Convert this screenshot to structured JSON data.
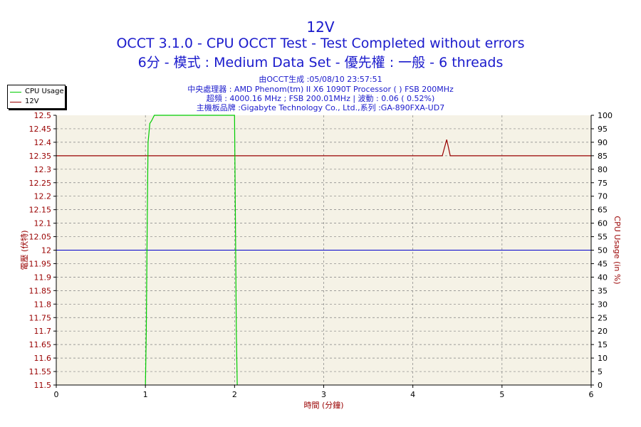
{
  "header": {
    "title": "12V",
    "subtitle1": "OCCT 3.1.0 - CPU OCCT Test - Test Completed without errors",
    "subtitle2": "6分 - 模式 : Medium Data Set - 優先權 : 一般 - 6 threads",
    "info1": "由OCCT生成 :05/08/10 23:57:51",
    "info2": "中央處理器 : AMD Phenom(tm) II X6 1090T Processor (    ) FSB 200MHz",
    "info3": "超頻 : 4000.16 MHz ; FSB 200.01MHz | 波動 : 0.06 ( 0.52%)",
    "info4": "主機板品牌 :Gigabyte Technology Co., Ltd.,系列 :GA-890FXA-UD7"
  },
  "legend": {
    "items": [
      {
        "label": "CPU Usage",
        "color": "#00cc00"
      },
      {
        "label": "12V",
        "color": "#990000"
      }
    ]
  },
  "chart_data": {
    "type": "line",
    "xlabel": "時間 (分鐘)",
    "ylabel": "電壓 (伏特)",
    "y2label": "CPU Usage (in %)",
    "xlim": [
      0,
      6
    ],
    "ylim": [
      11.5,
      12.5
    ],
    "y2lim": [
      0,
      100
    ],
    "x_ticks": [
      "0",
      "1",
      "2",
      "3",
      "4",
      "5",
      "6"
    ],
    "y_ticks": [
      "12.5",
      "12.45",
      "12.4",
      "12.35",
      "12.3",
      "12.25",
      "12.2",
      "12.15",
      "12.1",
      "12.05",
      "12",
      "11.95",
      "11.9",
      "11.85",
      "11.8",
      "11.75",
      "11.7",
      "11.65",
      "11.6",
      "11.55",
      "11.5"
    ],
    "y2_ticks": [
      "100",
      "95",
      "90",
      "85",
      "80",
      "75",
      "70",
      "65",
      "60",
      "55",
      "50",
      "45",
      "40",
      "35",
      "30",
      "25",
      "20",
      "15",
      "10",
      "5",
      "0"
    ],
    "grid": true,
    "reference_line": {
      "y": 12.0,
      "color": "#0000cc"
    },
    "series": [
      {
        "name": "12V",
        "axis": "left",
        "color": "#990000",
        "x": [
          0,
          4.33,
          4.38,
          4.42,
          6
        ],
        "y": [
          12.35,
          12.35,
          12.41,
          12.35,
          12.35
        ]
      },
      {
        "name": "CPU Usage",
        "axis": "right",
        "color": "#00cc00",
        "x": [
          1.0,
          1.01,
          1.02,
          1.03,
          1.05,
          1.07,
          1.1,
          1.2,
          1.3,
          1.6,
          1.9,
          2.0,
          2.01,
          2.02,
          2.03
        ],
        "y": [
          0,
          20,
          60,
          90,
          97,
          98,
          100,
          100,
          100,
          100,
          100,
          100,
          60,
          20,
          0
        ]
      }
    ],
    "colors": {
      "plot_bg": "#f5f2e6",
      "axis_text": "#990000",
      "grid": "#808080"
    }
  }
}
